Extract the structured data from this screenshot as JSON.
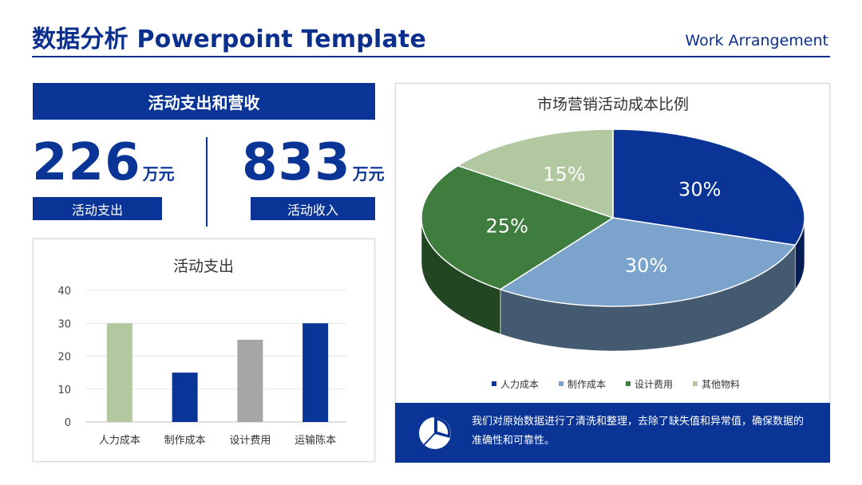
{
  "header": {
    "title": "数据分析 Powerpoint Template",
    "subtitle": "Work Arrangement"
  },
  "summary": {
    "banner": "活动支出和营收",
    "kpis": [
      {
        "value": "226",
        "unit": "万元",
        "label": "活动支出"
      },
      {
        "value": "833",
        "unit": "万元",
        "label": "活动收入"
      }
    ]
  },
  "note": {
    "text": "我们对原始数据进行了清洗和整理，去除了缺失值和异常值，确保数据的准确性和可靠性。",
    "icon": "pie-chart-icon"
  },
  "colors": {
    "brand": "#0a3596",
    "green": "#3e7d3e",
    "light_green": "#b2c8a0",
    "light_blue": "#7ba3cb",
    "grey": "#a6a6a6"
  },
  "chart_data": [
    {
      "type": "bar",
      "title": "活动支出",
      "categories": [
        "人力成本",
        "制作成本",
        "设计费用",
        "运输陈本"
      ],
      "values": [
        30,
        15,
        25,
        30
      ],
      "bar_colors": [
        "#b2c8a0",
        "#0a3596",
        "#a6a6a6",
        "#0a3596"
      ],
      "ylim": [
        0,
        40
      ],
      "yticks": [
        0,
        10,
        20,
        30,
        40
      ],
      "grid": true
    },
    {
      "type": "pie",
      "title": "市场营销活动成本比例",
      "labels": [
        "人力成本",
        "制作成本",
        "设计费用",
        "其他物料"
      ],
      "values": [
        30,
        30,
        25,
        15
      ],
      "data_labels": [
        "30%",
        "30%",
        "25%",
        "15%"
      ],
      "colors": [
        "#0a3596",
        "#7ba3cb",
        "#3e7d3e",
        "#b2c8a0"
      ],
      "style": "3d",
      "legend": "bottom"
    }
  ]
}
